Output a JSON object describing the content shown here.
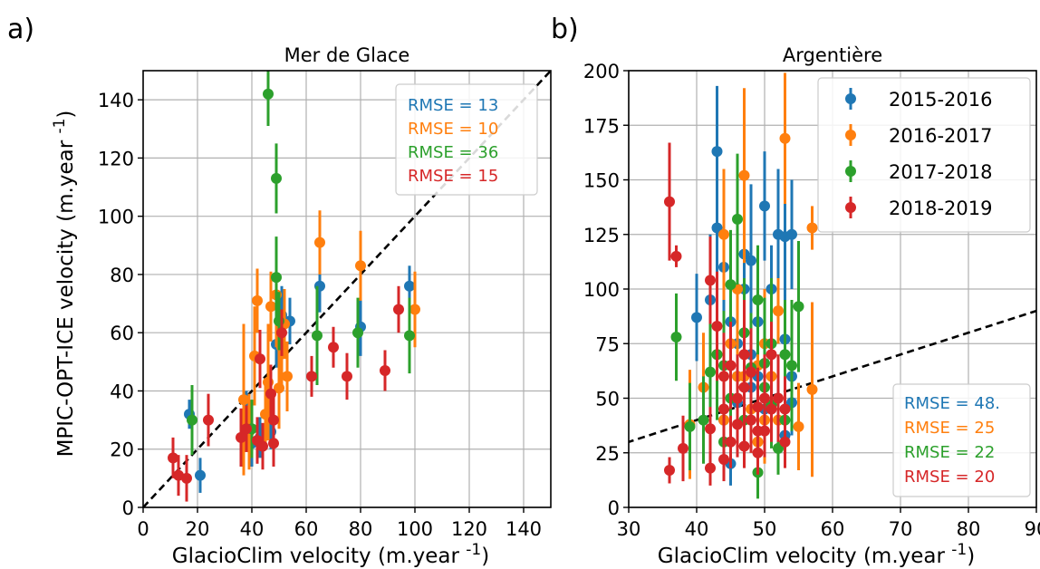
{
  "colors": {
    "c2015": "#1f77b4",
    "c2016": "#ff7f0e",
    "c2017": "#2ca02c",
    "c2018": "#d62728",
    "grid": "#b0b0b0"
  },
  "chart_data": [
    {
      "type": "scatter",
      "panel_label": "a)",
      "title": "Mer de Glace",
      "xlabel": "GlacioClim velocity (m.year",
      "xlabel_sup": "-1",
      "xlabel_close": ")",
      "ylabel": "MPIC-OPT-ICE velocity (m.year",
      "ylabel_sup": "-1",
      "ylabel_close": ")",
      "xlim": [
        0,
        150
      ],
      "ylim": [
        0,
        150
      ],
      "xticks": [
        0,
        20,
        40,
        60,
        80,
        100,
        120,
        140
      ],
      "yticks": [
        0,
        20,
        40,
        60,
        80,
        100,
        120,
        140
      ],
      "grid": true,
      "identity_line": true,
      "legend": [
        {
          "text": "RMSE = 13",
          "series": 0
        },
        {
          "text": "RMSE = 10",
          "series": 1
        },
        {
          "text": "RMSE = 36",
          "series": 2
        },
        {
          "text": "RMSE = 15",
          "series": 3
        }
      ],
      "legend_position": "top-right",
      "series": [
        {
          "color_key": "c2015",
          "points": [
            [
              17,
              32,
              5
            ],
            [
              21,
              11,
              6
            ],
            [
              38,
              30,
              10
            ],
            [
              40,
              22,
              8
            ],
            [
              43,
              24,
              7
            ],
            [
              47,
              26,
              6
            ],
            [
              49,
              56,
              8
            ],
            [
              51,
              66,
              10
            ],
            [
              54,
              64,
              8
            ],
            [
              65,
              76,
              9
            ],
            [
              80,
              62,
              10
            ],
            [
              98,
              76,
              7
            ]
          ]
        },
        {
          "color_key": "c2016",
          "points": [
            [
              37,
              37,
              26
            ],
            [
              39,
              26,
              13
            ],
            [
              41,
              52,
              17
            ],
            [
              42,
              71,
              11
            ],
            [
              45,
              32,
              11
            ],
            [
              46,
              43,
              20
            ],
            [
              47,
              69,
              12
            ],
            [
              49,
              73,
              18
            ],
            [
              50,
              41,
              14
            ],
            [
              51,
              55,
              13
            ],
            [
              52,
              63,
              12
            ],
            [
              53,
              45,
              12
            ],
            [
              65,
              91,
              11
            ],
            [
              80,
              83,
              12
            ],
            [
              100,
              68,
              13
            ]
          ]
        },
        {
          "color_key": "c2017",
          "points": [
            [
              18,
              30,
              12
            ],
            [
              40,
              27,
              10
            ],
            [
              46,
              142,
              11
            ],
            [
              49,
              113,
              12
            ],
            [
              49,
              79,
              14
            ],
            [
              50,
              64,
              10
            ],
            [
              64,
              59,
              17
            ],
            [
              79,
              60,
              12
            ],
            [
              98,
              59,
              13
            ]
          ]
        },
        {
          "color_key": "c2018",
          "points": [
            [
              11,
              17,
              7
            ],
            [
              13,
              11,
              7
            ],
            [
              16,
              10,
              8
            ],
            [
              24,
              30,
              9
            ],
            [
              36,
              24,
              10
            ],
            [
              38,
              27,
              8
            ],
            [
              42,
              23,
              8
            ],
            [
              43,
              51,
              10
            ],
            [
              44,
              21,
              8
            ],
            [
              47,
              39,
              10
            ],
            [
              48,
              22,
              8
            ],
            [
              48,
              30,
              9
            ],
            [
              51,
              60,
              8
            ],
            [
              62,
              45,
              7
            ],
            [
              70,
              55,
              7
            ],
            [
              75,
              45,
              8
            ],
            [
              89,
              47,
              7
            ],
            [
              94,
              68,
              8
            ]
          ]
        }
      ]
    },
    {
      "type": "scatter",
      "panel_label": "b)",
      "title": "Argentière",
      "xlabel": "GlacioClim velocity (m.year",
      "xlabel_sup": "-1",
      "xlabel_close": ")",
      "ylabel": "",
      "xlim": [
        30,
        90
      ],
      "ylim": [
        0,
        200
      ],
      "xticks": [
        30,
        40,
        50,
        60,
        70,
        80,
        90
      ],
      "yticks": [
        0,
        25,
        50,
        75,
        100,
        125,
        150,
        175,
        200
      ],
      "grid": true,
      "identity_line": true,
      "legend": [
        {
          "text": "2015-2016",
          "series": 0
        },
        {
          "text": "2016-2017",
          "series": 1
        },
        {
          "text": "2017-2018",
          "series": 2
        },
        {
          "text": "2018-2019",
          "series": 3
        }
      ],
      "legend_position": "top-right",
      "legend2": [
        {
          "text": "RMSE = 48.",
          "series": 0
        },
        {
          "text": "RMSE = 25",
          "series": 1
        },
        {
          "text": "RMSE = 22",
          "series": 2
        },
        {
          "text": "RMSE = 20",
          "series": 3
        }
      ],
      "legend2_position": "bottom-right",
      "series": [
        {
          "color_key": "c2015",
          "points": [
            [
              40,
              87,
              20
            ],
            [
              42,
              95,
              30
            ],
            [
              43,
              128,
              40
            ],
            [
              43,
              163,
              30
            ],
            [
              44,
              110,
              25
            ],
            [
              45,
              20,
              10
            ],
            [
              45,
              85,
              30
            ],
            [
              46,
              60,
              15
            ],
            [
              46,
              48,
              15
            ],
            [
              47,
              116,
              25
            ],
            [
              47,
              100,
              30
            ],
            [
              48,
              113,
              35
            ],
            [
              48,
              70,
              20
            ],
            [
              49,
              60,
              25
            ],
            [
              49,
              85,
              20
            ],
            [
              50,
              138,
              25
            ],
            [
              50,
              45,
              20
            ],
            [
              51,
              100,
              20
            ],
            [
              52,
              125,
              30
            ],
            [
              53,
              124,
              40
            ],
            [
              53,
              77,
              20
            ],
            [
              53,
              33,
              10
            ],
            [
              54,
              125,
              25
            ],
            [
              54,
              60,
              20
            ],
            [
              54,
              48,
              15
            ],
            [
              44,
              40,
              15
            ],
            [
              46,
              75,
              25
            ],
            [
              48,
              55,
              20
            ]
          ]
        },
        {
          "color_key": "c2016",
          "points": [
            [
              39,
              38,
              25
            ],
            [
              41,
              55,
              25
            ],
            [
              44,
              40,
              20
            ],
            [
              44,
              125,
              30
            ],
            [
              45,
              75,
              25
            ],
            [
              46,
              60,
              20
            ],
            [
              47,
              152,
              40
            ],
            [
              47,
              60,
              30
            ],
            [
              48,
              45,
              20
            ],
            [
              49,
              65,
              20
            ],
            [
              50,
              40,
              20
            ],
            [
              51,
              60,
              20
            ],
            [
              52,
              90,
              15
            ],
            [
              52,
              40,
              20
            ],
            [
              53,
              169,
              30
            ],
            [
              55,
              37,
              20
            ],
            [
              57,
              54,
              40
            ],
            [
              57,
              128,
              10
            ],
            [
              46,
              100,
              25
            ],
            [
              49,
              30,
              15
            ],
            [
              43,
              70,
              20
            ],
            [
              50,
              75,
              25
            ]
          ]
        },
        {
          "color_key": "c2017",
          "points": [
            [
              37,
              78,
              20
            ],
            [
              39,
              37,
              20
            ],
            [
              41,
              40,
              20
            ],
            [
              42,
              62,
              25
            ],
            [
              43,
              70,
              30
            ],
            [
              44,
              65,
              25
            ],
            [
              45,
              102,
              25
            ],
            [
              45,
              50,
              20
            ],
            [
              46,
              132,
              30
            ],
            [
              47,
              80,
              25
            ],
            [
              47,
              40,
              20
            ],
            [
              48,
              64,
              25
            ],
            [
              49,
              95,
              25
            ],
            [
              49,
              16,
              12
            ],
            [
              50,
              66,
              30
            ],
            [
              51,
              47,
              20
            ],
            [
              51,
              75,
              30
            ],
            [
              52,
              27,
              12
            ],
            [
              53,
              70,
              25
            ],
            [
              53,
              40,
              15
            ],
            [
              54,
              65,
              30
            ],
            [
              55,
              92,
              30
            ],
            [
              44,
              30,
              15
            ],
            [
              50,
              55,
              25
            ]
          ]
        },
        {
          "color_key": "c2018",
          "points": [
            [
              36,
              140,
              27
            ],
            [
              36,
              17,
              6
            ],
            [
              37,
              115,
              5
            ],
            [
              38,
              27,
              15
            ],
            [
              42,
              18,
              8
            ],
            [
              42,
              36,
              10
            ],
            [
              42,
              104,
              20
            ],
            [
              43,
              83,
              25
            ],
            [
              44,
              60,
              20
            ],
            [
              44,
              45,
              15
            ],
            [
              45,
              30,
              12
            ],
            [
              46,
              50,
              20
            ],
            [
              46,
              38,
              15
            ],
            [
              47,
              70,
              25
            ],
            [
              47,
              28,
              10
            ],
            [
              48,
              40,
              15
            ],
            [
              48,
              62,
              20
            ],
            [
              49,
              46,
              18
            ],
            [
              49,
              25,
              10
            ],
            [
              50,
              50,
              20
            ],
            [
              50,
              35,
              12
            ],
            [
              51,
              70,
              15
            ],
            [
              51,
              45,
              15
            ],
            [
              52,
              50,
              20
            ],
            [
              53,
              45,
              15
            ],
            [
              53,
              30,
              12
            ],
            [
              45,
              65,
              20
            ],
            [
              47,
              55,
              18
            ],
            [
              44,
              22,
              10
            ],
            [
              49,
              35,
              15
            ]
          ]
        }
      ]
    }
  ]
}
